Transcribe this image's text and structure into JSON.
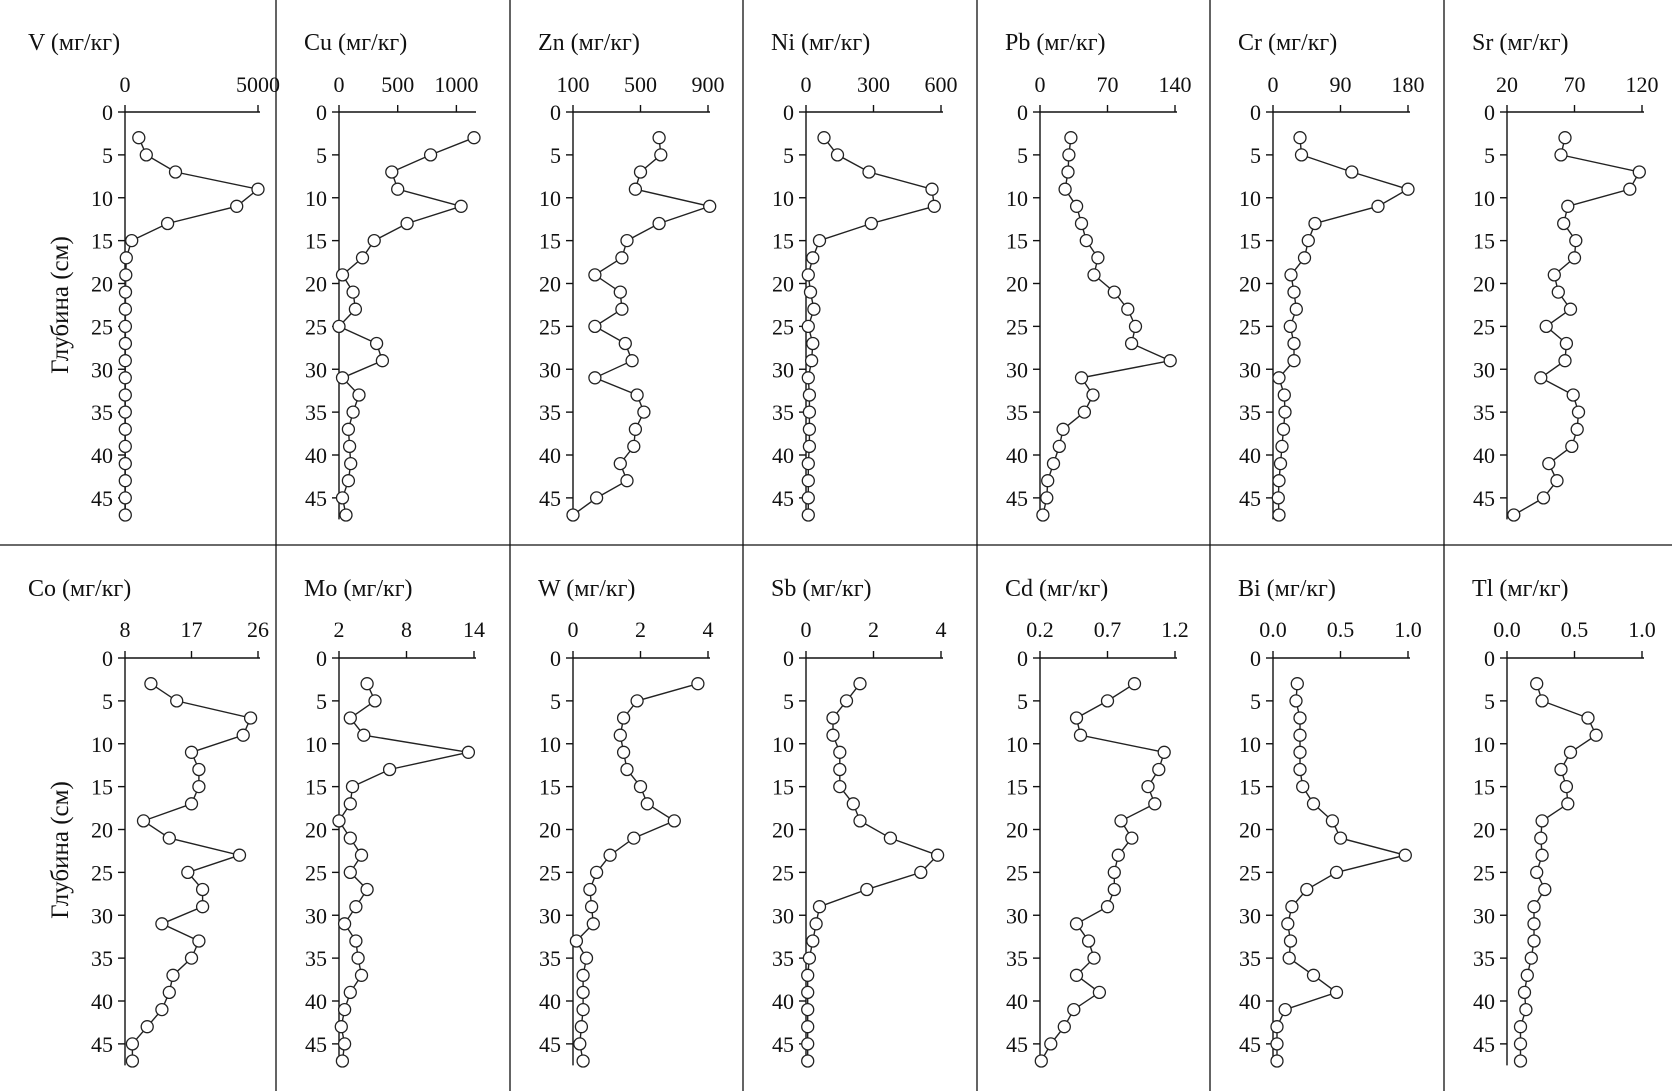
{
  "y_axis_label": "Глубина (см)",
  "y_ticks": [
    0,
    5,
    10,
    15,
    20,
    25,
    30,
    35,
    40,
    45
  ],
  "chart_data": [
    {
      "type": "line",
      "title": "V (мг/кг)",
      "xticks": [
        0,
        5000
      ],
      "xlim": [
        0,
        5000
      ],
      "depth": [
        3,
        5,
        7,
        9,
        11,
        13,
        15,
        17,
        19,
        21,
        23,
        25,
        27,
        29,
        31,
        33,
        35,
        37,
        39,
        41,
        43,
        45,
        47
      ],
      "values": [
        520,
        800,
        1900,
        5000,
        4200,
        1600,
        250,
        50,
        30,
        20,
        15,
        15,
        15,
        10,
        10,
        10,
        10,
        10,
        10,
        10,
        10,
        10,
        10
      ]
    },
    {
      "type": "line",
      "title": "Cu (мг/кг)",
      "xticks": [
        0,
        500,
        1000
      ],
      "xlim": [
        0,
        1150
      ],
      "depth": [
        3,
        5,
        7,
        9,
        11,
        13,
        15,
        17,
        19,
        21,
        23,
        25,
        27,
        29,
        31,
        33,
        35,
        37,
        39,
        41,
        43,
        45,
        47
      ],
      "values": [
        1150,
        780,
        450,
        500,
        1040,
        580,
        300,
        200,
        30,
        120,
        140,
        0,
        320,
        370,
        30,
        170,
        120,
        80,
        90,
        100,
        80,
        30,
        60
      ]
    },
    {
      "type": "line",
      "title": "Zn (мг/кг)",
      "xticks": [
        100,
        500,
        900
      ],
      "xlim": [
        100,
        900
      ],
      "depth": [
        3,
        5,
        7,
        9,
        11,
        13,
        15,
        17,
        19,
        21,
        23,
        25,
        27,
        29,
        31,
        33,
        35,
        37,
        39,
        41,
        43,
        45,
        47
      ],
      "values": [
        610,
        620,
        500,
        470,
        910,
        610,
        420,
        390,
        230,
        380,
        390,
        230,
        410,
        450,
        230,
        480,
        520,
        470,
        460,
        380,
        420,
        240,
        100
      ]
    },
    {
      "type": "line",
      "title": "Ni (мг/кг)",
      "xticks": [
        0,
        300,
        600
      ],
      "xlim": [
        0,
        600
      ],
      "depth": [
        3,
        5,
        7,
        9,
        11,
        13,
        15,
        17,
        19,
        21,
        23,
        25,
        27,
        29,
        31,
        33,
        35,
        37,
        39,
        41,
        43,
        45,
        47
      ],
      "values": [
        80,
        140,
        280,
        560,
        570,
        290,
        60,
        30,
        10,
        20,
        35,
        10,
        30,
        25,
        10,
        15,
        15,
        15,
        15,
        10,
        10,
        10,
        10
      ]
    },
    {
      "type": "line",
      "title": "Pb (мг/кг)",
      "xticks": [
        0,
        70,
        140
      ],
      "xlim": [
        0,
        140
      ],
      "depth": [
        3,
        5,
        7,
        9,
        11,
        13,
        15,
        17,
        19,
        21,
        23,
        25,
        27,
        29,
        31,
        33,
        35,
        37,
        39,
        41,
        43,
        45,
        47
      ],
      "values": [
        32,
        30,
        29,
        26,
        38,
        43,
        48,
        60,
        56,
        77,
        91,
        99,
        95,
        135,
        43,
        55,
        46,
        24,
        20,
        14,
        8,
        7,
        3
      ]
    },
    {
      "type": "line",
      "title": "Cr (мг/кг)",
      "xticks": [
        0,
        90,
        180
      ],
      "xlim": [
        0,
        180
      ],
      "depth": [
        3,
        5,
        7,
        9,
        11,
        13,
        15,
        17,
        19,
        21,
        23,
        25,
        27,
        29,
        31,
        33,
        35,
        37,
        39,
        41,
        43,
        45,
        47
      ],
      "values": [
        36,
        38,
        105,
        180,
        140,
        56,
        47,
        42,
        24,
        28,
        31,
        23,
        28,
        28,
        8,
        15,
        16,
        14,
        12,
        10,
        8,
        7,
        8
      ]
    },
    {
      "type": "line",
      "title": "Sr (мг/кг)",
      "xticks": [
        20,
        70,
        120
      ],
      "xlim": [
        20,
        120
      ],
      "depth": [
        3,
        5,
        7,
        9,
        11,
        13,
        15,
        17,
        19,
        21,
        23,
        25,
        27,
        29,
        31,
        33,
        35,
        37,
        39,
        41,
        43,
        45,
        47
      ],
      "values": [
        63,
        60,
        118,
        111,
        65,
        62,
        71,
        70,
        55,
        58,
        67,
        49,
        64,
        63,
        45,
        69,
        73,
        72,
        68,
        51,
        57,
        47,
        25
      ]
    },
    {
      "type": "line",
      "title": "Co (мг/кг)",
      "xticks": [
        8,
        17,
        26
      ],
      "xlim": [
        8,
        26
      ],
      "depth": [
        3,
        5,
        7,
        9,
        11,
        13,
        15,
        17,
        19,
        21,
        23,
        25,
        27,
        29,
        31,
        33,
        35,
        37,
        39,
        41,
        43,
        45,
        47
      ],
      "values": [
        11.5,
        15,
        25,
        24,
        17,
        18,
        18,
        17,
        10.5,
        14,
        23.5,
        16.5,
        18.5,
        18.5,
        13,
        18,
        17,
        14.5,
        14,
        13,
        11,
        9,
        9
      ]
    },
    {
      "type": "line",
      "title": "Mo (мг/кг)",
      "xticks": [
        2,
        8,
        14
      ],
      "xlim": [
        2,
        14
      ],
      "depth": [
        3,
        5,
        7,
        9,
        11,
        13,
        15,
        17,
        19,
        21,
        23,
        25,
        27,
        29,
        31,
        33,
        35,
        37,
        39,
        41,
        43,
        45,
        47
      ],
      "values": [
        4.5,
        5.2,
        3.0,
        4.2,
        13.5,
        6.5,
        3.2,
        3.0,
        2.0,
        3.0,
        4.0,
        3.0,
        4.5,
        3.5,
        2.5,
        3.5,
        3.7,
        4.0,
        3.0,
        2.5,
        2.2,
        2.5,
        2.3
      ]
    },
    {
      "type": "line",
      "title": "W (мг/кг)",
      "xticks": [
        0,
        2,
        4
      ],
      "xlim": [
        0,
        4
      ],
      "depth": [
        3,
        5,
        7,
        9,
        11,
        13,
        15,
        17,
        19,
        21,
        23,
        25,
        27,
        29,
        31,
        33,
        35,
        37,
        39,
        41,
        43,
        45,
        47
      ],
      "values": [
        3.7,
        1.9,
        1.5,
        1.4,
        1.5,
        1.6,
        2.0,
        2.2,
        3.0,
        1.8,
        1.1,
        0.7,
        0.5,
        0.55,
        0.6,
        0.1,
        0.4,
        0.3,
        0.3,
        0.3,
        0.25,
        0.2,
        0.3
      ]
    },
    {
      "type": "line",
      "title": "Sb (мг/кг)",
      "xticks": [
        0,
        2,
        4
      ],
      "xlim": [
        0,
        4
      ],
      "depth": [
        3,
        5,
        7,
        9,
        11,
        13,
        15,
        17,
        19,
        21,
        23,
        25,
        27,
        29,
        31,
        33,
        35,
        37,
        39,
        41,
        43,
        45,
        47
      ],
      "values": [
        1.6,
        1.2,
        0.8,
        0.8,
        1.0,
        1.0,
        1.0,
        1.4,
        1.6,
        2.5,
        3.9,
        3.4,
        1.8,
        0.4,
        0.3,
        0.2,
        0.1,
        0.05,
        0.05,
        0.05,
        0.05,
        0.05,
        0.05
      ]
    },
    {
      "type": "line",
      "title": "Cd (мг/кг)",
      "xticks": [
        0.2,
        0.7,
        1.2
      ],
      "xlim": [
        0.2,
        1.2
      ],
      "depth": [
        3,
        5,
        7,
        9,
        11,
        13,
        15,
        17,
        19,
        21,
        23,
        25,
        27,
        29,
        31,
        33,
        35,
        37,
        39,
        41,
        43,
        45,
        47
      ],
      "values": [
        0.9,
        0.7,
        0.47,
        0.5,
        1.12,
        1.08,
        1.0,
        1.05,
        0.8,
        0.88,
        0.78,
        0.75,
        0.75,
        0.7,
        0.47,
        0.56,
        0.6,
        0.47,
        0.64,
        0.45,
        0.38,
        0.28,
        0.21
      ]
    },
    {
      "type": "line",
      "title": "Bi (мг/кг)",
      "xticks": [
        "0.0",
        "0.5",
        "1.0"
      ],
      "xlim": [
        0,
        1
      ],
      "depth": [
        3,
        5,
        7,
        9,
        11,
        13,
        15,
        17,
        19,
        21,
        23,
        25,
        27,
        29,
        31,
        33,
        35,
        37,
        39,
        41,
        43,
        45,
        47
      ],
      "values": [
        0.18,
        0.17,
        0.2,
        0.2,
        0.2,
        0.2,
        0.22,
        0.3,
        0.44,
        0.5,
        0.98,
        0.47,
        0.25,
        0.14,
        0.11,
        0.13,
        0.12,
        0.3,
        0.47,
        0.09,
        0.03,
        0.03,
        0.03
      ]
    },
    {
      "type": "line",
      "title": "Tl (мг/кг)",
      "xticks": [
        "0.0",
        "0.5",
        "1.0"
      ],
      "xlim": [
        0,
        1
      ],
      "depth": [
        3,
        5,
        7,
        9,
        11,
        13,
        15,
        17,
        19,
        21,
        23,
        25,
        27,
        29,
        31,
        33,
        35,
        37,
        39,
        41,
        43,
        45,
        47
      ],
      "values": [
        0.22,
        0.26,
        0.6,
        0.66,
        0.47,
        0.4,
        0.44,
        0.45,
        0.26,
        0.25,
        0.26,
        0.22,
        0.28,
        0.2,
        0.2,
        0.2,
        0.18,
        0.15,
        0.13,
        0.14,
        0.1,
        0.1,
        0.1
      ]
    }
  ]
}
